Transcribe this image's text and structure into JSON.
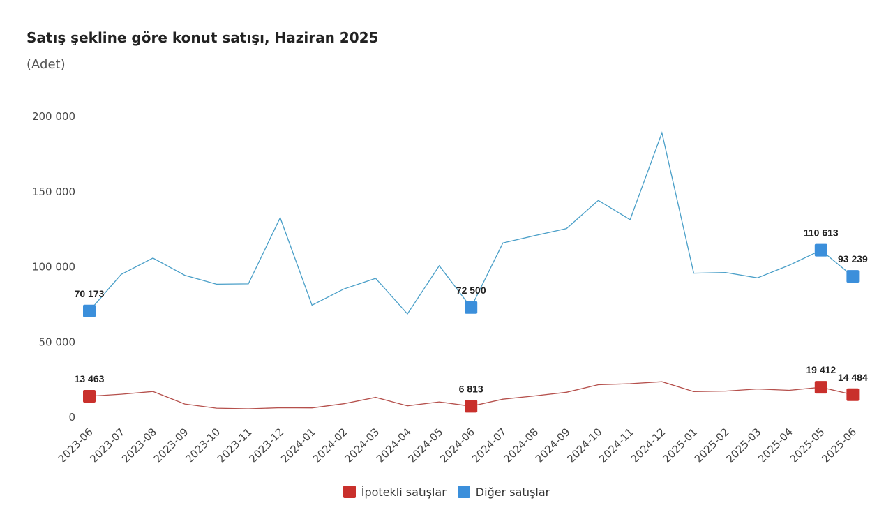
{
  "chart_data": {
    "type": "line",
    "title": "Satış şekline göre konut satışı, Haziran 2025",
    "subtitle": "(Adet)",
    "categories": [
      "2023-06",
      "2023-07",
      "2023-08",
      "2023-09",
      "2023-10",
      "2023-11",
      "2023-12",
      "2024-01",
      "2024-02",
      "2024-03",
      "2024-04",
      "2024-05",
      "2024-06",
      "2024-07",
      "2024-08",
      "2024-09",
      "2024-10",
      "2024-11",
      "2024-12",
      "2025-01",
      "2025-02",
      "2025-03",
      "2025-04",
      "2025-05",
      "2025-06"
    ],
    "ylim": [
      0,
      200000
    ],
    "yticks": [
      {
        "value": 0,
        "label": "0"
      },
      {
        "value": 50000,
        "label": "50 000"
      },
      {
        "value": 100000,
        "label": "100 000"
      },
      {
        "value": 150000,
        "label": "150 000"
      },
      {
        "value": 200000,
        "label": "200 000"
      }
    ],
    "grid": false,
    "legend_position": "bottom-center",
    "series": [
      {
        "name": "İpotekli satışlar",
        "color": "#c9302c",
        "line_color": "#b5504c",
        "values": [
          13463,
          14800,
          16600,
          8300,
          5500,
          5100,
          5800,
          5700,
          8500,
          12700,
          7100,
          9700,
          6813,
          11500,
          13700,
          16100,
          21100,
          21800,
          23100,
          16500,
          16900,
          18300,
          17400,
          19412,
          14484
        ],
        "labels": [
          {
            "index": 0,
            "text": "13 463"
          },
          {
            "index": 12,
            "text": "6 813"
          },
          {
            "index": 23,
            "text": "19 412"
          },
          {
            "index": 24,
            "text": "14 484"
          }
        ]
      },
      {
        "name": "Diğer satışlar",
        "color": "#3b8fdb",
        "line_color": "#4a9fc8",
        "values": [
          70173,
          94500,
          105400,
          93900,
          88000,
          88200,
          132200,
          74000,
          84800,
          91900,
          68200,
          100300,
          72500,
          115400,
          120300,
          125000,
          143700,
          130900,
          188700,
          95300,
          95800,
          92200,
          100600,
          110613,
          93239
        ],
        "labels": [
          {
            "index": 0,
            "text": "70 173"
          },
          {
            "index": 12,
            "text": "72 500"
          },
          {
            "index": 23,
            "text": "110 613"
          },
          {
            "index": 24,
            "text": "93 239"
          }
        ]
      }
    ]
  }
}
